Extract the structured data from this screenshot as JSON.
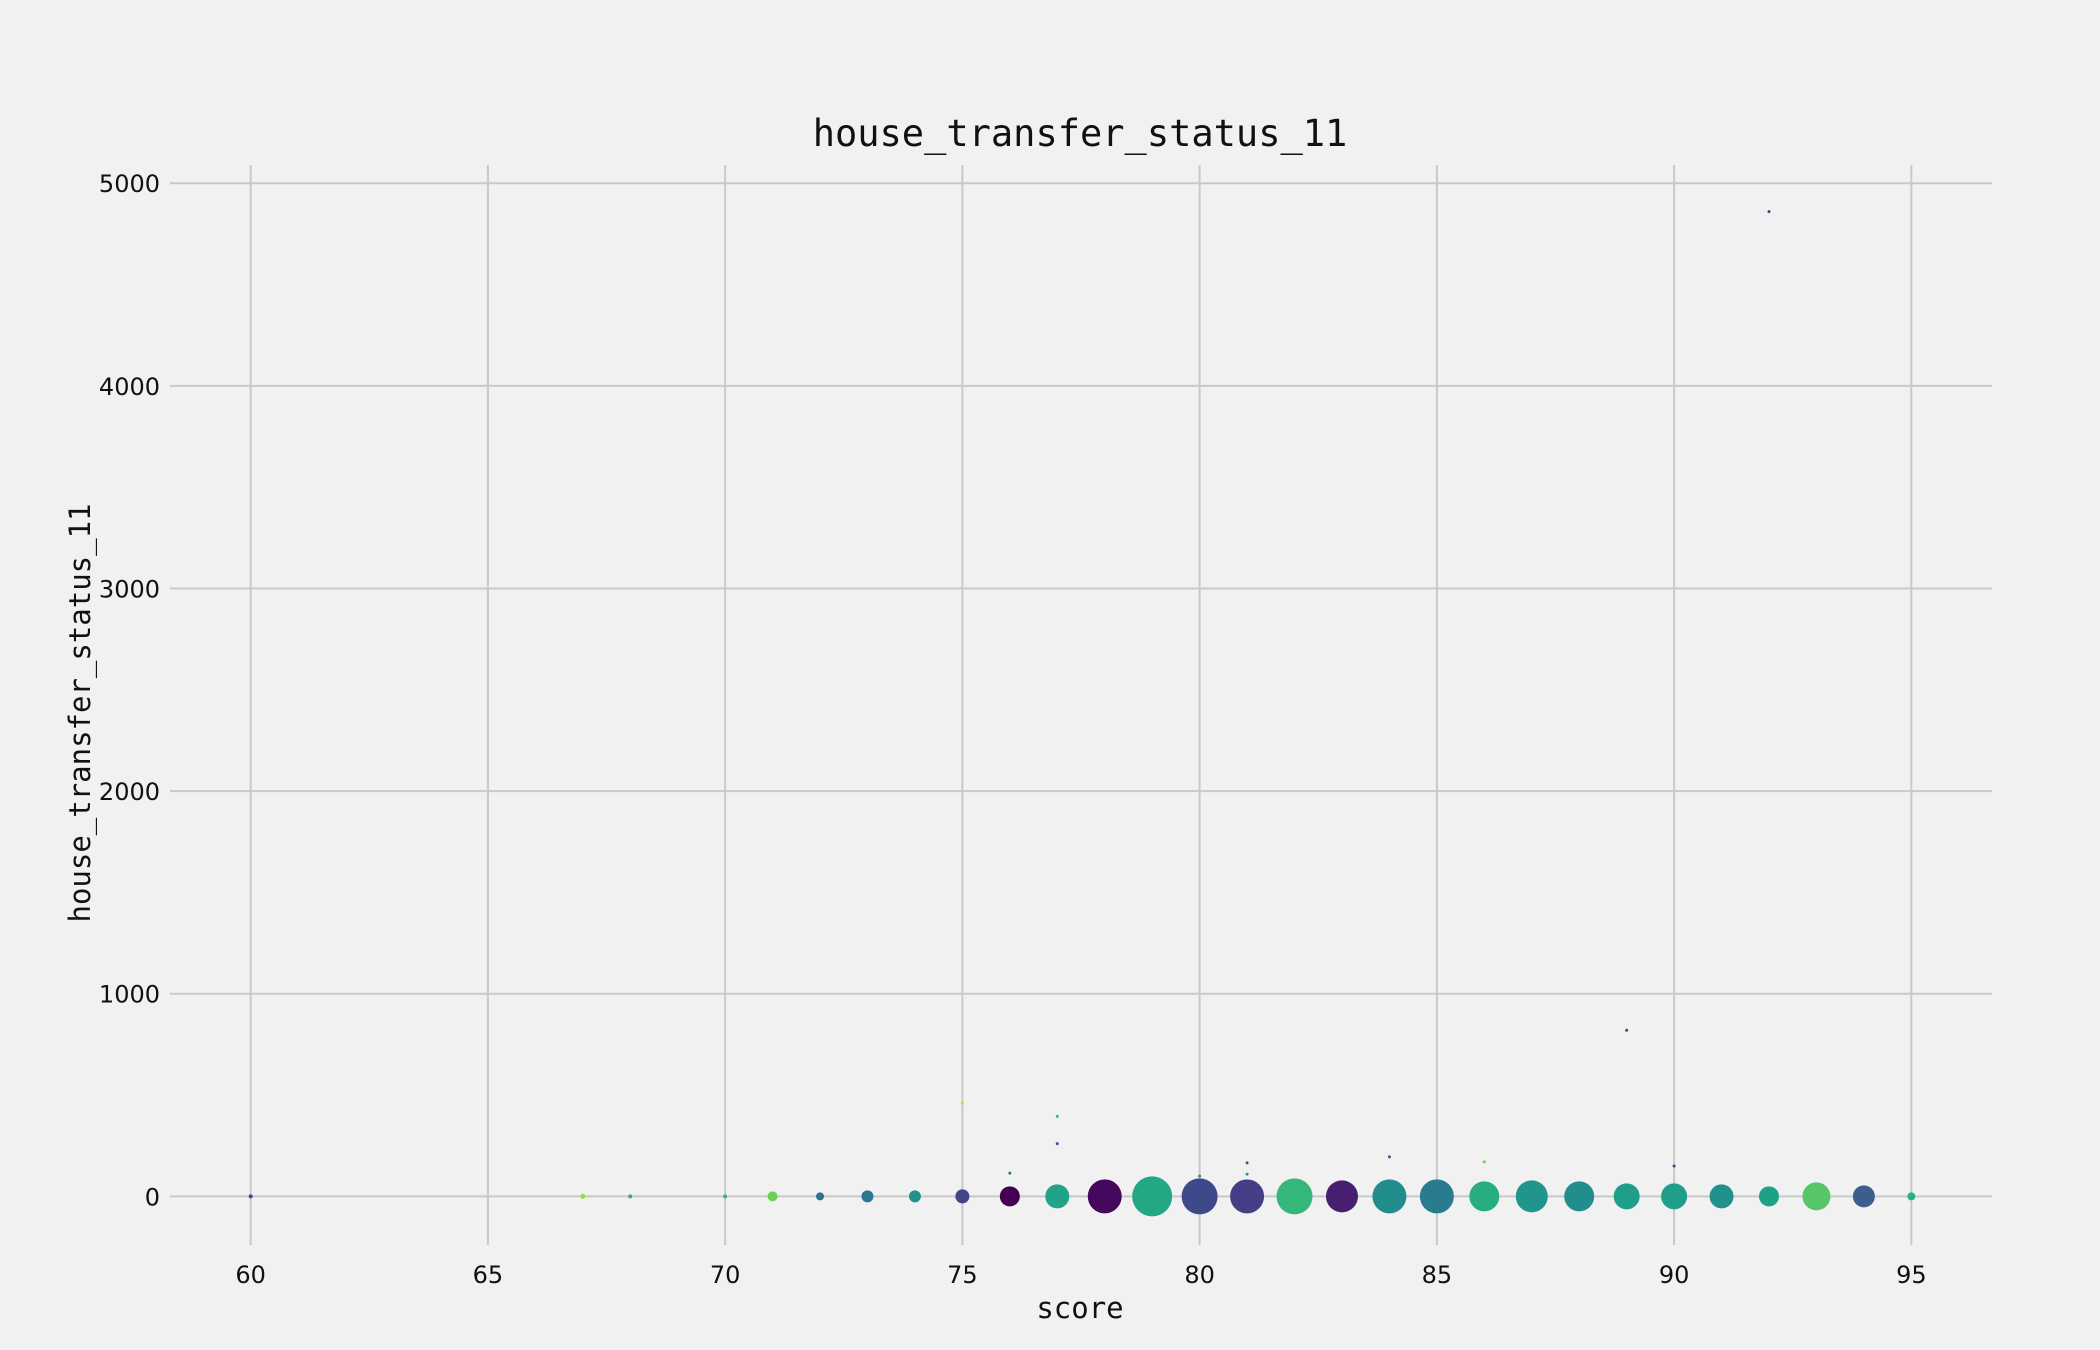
{
  "chart_data": {
    "type": "scatter",
    "title": "house_transfer_status_11",
    "xlabel": "score",
    "ylabel": "house_transfer_status_11",
    "xlim": [
      58.3,
      96.7
    ],
    "ylim": [
      -240,
      5090
    ],
    "xticks": [
      60,
      65,
      70,
      75,
      80,
      85,
      90,
      95
    ],
    "yticks": [
      0,
      1000,
      2000,
      3000,
      4000,
      5000
    ],
    "grid": true,
    "legend": "none",
    "points": [
      {
        "x": 60,
        "y": 0,
        "size": 2,
        "color": "#3b4e8b"
      },
      {
        "x": 67,
        "y": 0,
        "size": 2.5,
        "color": "#a0da39"
      },
      {
        "x": 68,
        "y": 0,
        "size": 2,
        "color": "#27ad81"
      },
      {
        "x": 70,
        "y": 0,
        "size": 2,
        "color": "#35b779"
      },
      {
        "x": 71,
        "y": 0,
        "size": 5,
        "color": "#6ece58"
      },
      {
        "x": 72,
        "y": 0,
        "size": 4,
        "color": "#2c728e"
      },
      {
        "x": 73,
        "y": 0,
        "size": 6,
        "color": "#2a788e"
      },
      {
        "x": 74,
        "y": 0,
        "size": 6,
        "color": "#21918c"
      },
      {
        "x": 75,
        "y": 0,
        "size": 7,
        "color": "#414487"
      },
      {
        "x": 75,
        "y": 460,
        "size": 1.5,
        "color": "#bddf26"
      },
      {
        "x": 76,
        "y": 0,
        "size": 10,
        "color": "#440154"
      },
      {
        "x": 76,
        "y": 115,
        "size": 1.5,
        "color": "#2c728e"
      },
      {
        "x": 77,
        "y": 0,
        "size": 12,
        "color": "#20a386"
      },
      {
        "x": 77,
        "y": 260,
        "size": 1.5,
        "color": "#3b528b"
      },
      {
        "x": 77,
        "y": 395,
        "size": 1.5,
        "color": "#35b779"
      },
      {
        "x": 78,
        "y": 0,
        "size": 17,
        "color": "#46085c"
      },
      {
        "x": 79,
        "y": 0,
        "size": 20,
        "color": "#22a884"
      },
      {
        "x": 80,
        "y": 0,
        "size": 18,
        "color": "#3e4989"
      },
      {
        "x": 80,
        "y": 100,
        "size": 1.5,
        "color": "#1f998a"
      },
      {
        "x": 81,
        "y": 0,
        "size": 17,
        "color": "#433e85"
      },
      {
        "x": 81,
        "y": 110,
        "size": 1.5,
        "color": "#1e9b8a"
      },
      {
        "x": 81,
        "y": 165,
        "size": 1.5,
        "color": "#3b528b"
      },
      {
        "x": 82,
        "y": 0,
        "size": 18,
        "color": "#35b779"
      },
      {
        "x": 83,
        "y": 0,
        "size": 16,
        "color": "#481f70"
      },
      {
        "x": 84,
        "y": 0,
        "size": 17,
        "color": "#228c8d"
      },
      {
        "x": 84,
        "y": 195,
        "size": 1.5,
        "color": "#3b528b"
      },
      {
        "x": 85,
        "y": 0,
        "size": 17,
        "color": "#297b8e"
      },
      {
        "x": 86,
        "y": 0,
        "size": 15,
        "color": "#27ad81"
      },
      {
        "x": 86,
        "y": 170,
        "size": 1.5,
        "color": "#6ece58"
      },
      {
        "x": 87,
        "y": 0,
        "size": 16,
        "color": "#1f958b"
      },
      {
        "x": 88,
        "y": 0,
        "size": 15,
        "color": "#228d8d"
      },
      {
        "x": 89,
        "y": 0,
        "size": 13,
        "color": "#1f9e89"
      },
      {
        "x": 89,
        "y": 820,
        "size": 1.5,
        "color": "#433e85"
      },
      {
        "x": 90,
        "y": 0,
        "size": 13,
        "color": "#1f9e89"
      },
      {
        "x": 90,
        "y": 150,
        "size": 1.5,
        "color": "#3e4a89"
      },
      {
        "x": 91,
        "y": 0,
        "size": 12,
        "color": "#21918c"
      },
      {
        "x": 92,
        "y": 0,
        "size": 10,
        "color": "#1fa187"
      },
      {
        "x": 92,
        "y": 4860,
        "size": 1.5,
        "color": "#414487"
      },
      {
        "x": 93,
        "y": 0,
        "size": 14,
        "color": "#56c667"
      },
      {
        "x": 94,
        "y": 0,
        "size": 11,
        "color": "#3b5e8c"
      },
      {
        "x": 95,
        "y": 0,
        "size": 4,
        "color": "#2ab07f"
      }
    ]
  }
}
